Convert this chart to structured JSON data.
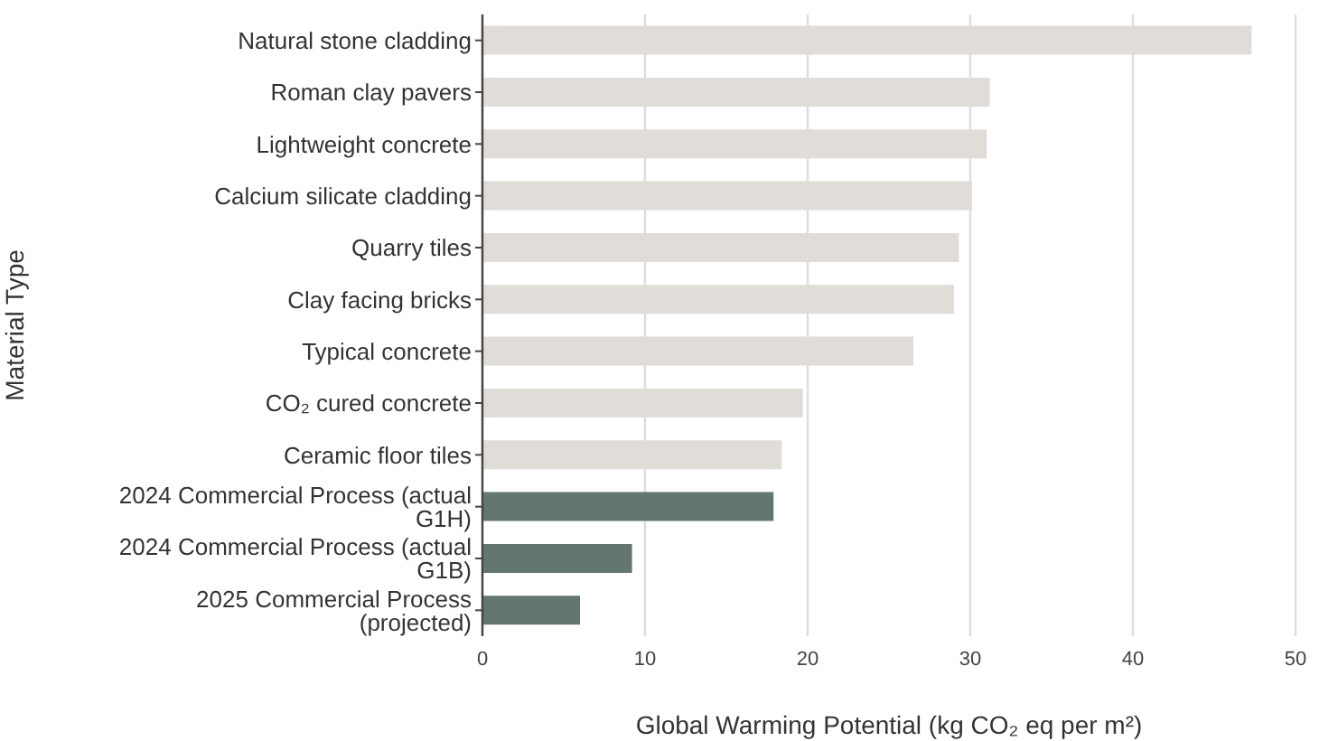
{
  "chart_data": {
    "type": "bar",
    "orientation": "horizontal",
    "categories": [
      "Natural stone cladding",
      "Roman clay pavers",
      "Lightweight concrete",
      "Calcium silicate cladding",
      "Quarry tiles",
      "Clay facing bricks",
      "Typical concrete",
      "CO₂ cured concrete",
      "Ceramic floor tiles",
      "2024 Commercial Process (actual G1H)",
      "2024 Commercial Process (actual G1B)",
      "2025 Commercial Process (projected)"
    ],
    "values": [
      47.3,
      31.2,
      31.0,
      30.1,
      29.3,
      29.0,
      26.5,
      19.7,
      18.4,
      17.9,
      9.2,
      6.0
    ],
    "colors": [
      "#e0dcd8",
      "#e0dcd8",
      "#e0dcd8",
      "#e0dcd8",
      "#e0dcd8",
      "#e0dcd8",
      "#e0dcd8",
      "#e0dcd8",
      "#e0dcd8",
      "#637672",
      "#637672",
      "#637672"
    ],
    "xlabel": "Global Warming Potential (kg CO₂ eq per m²)",
    "ylabel": "Material Type",
    "xlim": [
      0,
      50
    ],
    "xticks": [
      0,
      10,
      20,
      30,
      40,
      50
    ],
    "grid": "x"
  }
}
